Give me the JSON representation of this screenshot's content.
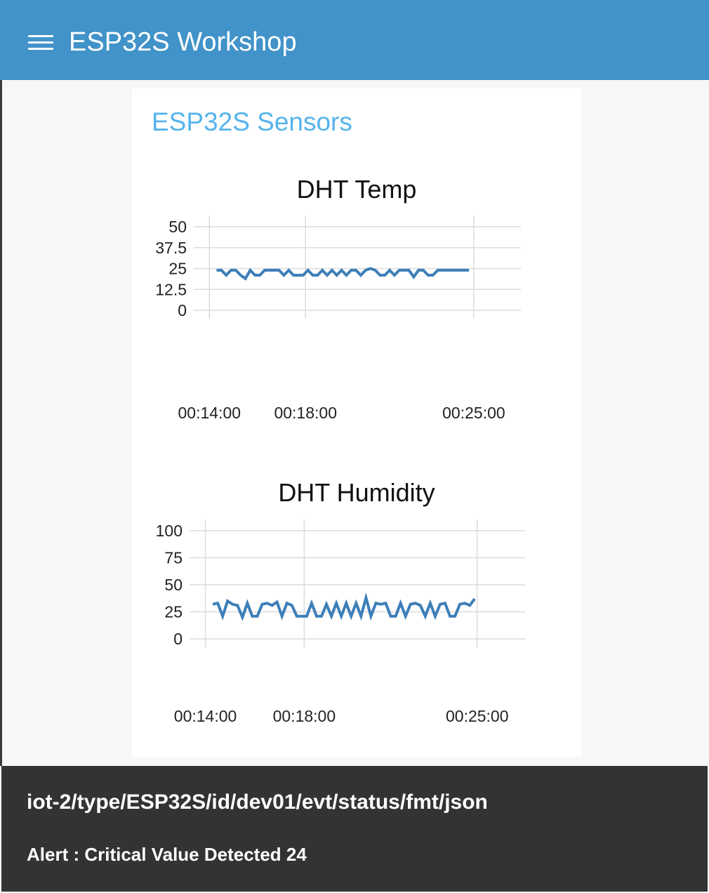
{
  "header": {
    "title": "ESP32S Workshop",
    "menu_icon": "hamburger-icon"
  },
  "group": {
    "title": "ESP32S Sensors"
  },
  "colors": {
    "header_bg": "#4193c9",
    "group_title": "#56b3ec",
    "line": "#3d7fb8",
    "toast_bg": "#333333"
  },
  "chart_data": [
    {
      "type": "line",
      "title": "DHT Temp",
      "ylim": [
        0,
        50
      ],
      "yticks": [
        "50",
        "37.5",
        "25",
        "12.5",
        "0"
      ],
      "ytick_values": [
        50,
        37.5,
        25,
        12.5,
        0
      ],
      "xticks": [
        "00:14:00",
        "00:18:00",
        "00:25:00"
      ],
      "xtick_minutes": [
        0,
        4,
        11
      ],
      "xlim_minutes": [
        -0.3,
        12.2
      ],
      "grid": true,
      "series": [
        {
          "x": [
            0.3,
            0.5,
            0.7,
            0.9,
            1.1,
            1.3,
            1.5,
            1.7,
            1.9,
            2.1,
            2.3,
            2.5,
            2.7,
            2.9,
            3.1,
            3.3,
            3.5,
            3.7,
            3.9,
            4.1,
            4.3,
            4.5,
            4.7,
            4.9,
            5.1,
            5.3,
            5.5,
            5.7,
            5.9,
            6.1,
            6.3,
            6.5,
            6.7,
            6.9,
            7.1,
            7.3,
            7.5,
            7.7,
            7.9,
            8.1,
            8.3,
            8.5,
            8.7,
            8.9,
            9.1,
            9.3,
            9.5,
            9.7,
            9.9,
            10.1,
            10.3,
            10.5,
            10.8
          ],
          "values": [
            24,
            24,
            21,
            24,
            24,
            21,
            19,
            24,
            21,
            21,
            24,
            24,
            24,
            24,
            21,
            24,
            21,
            21,
            21,
            24,
            21,
            21,
            24,
            21,
            24,
            21,
            24,
            21,
            24,
            24,
            21,
            24,
            25,
            24,
            21,
            21,
            24,
            21,
            24,
            24,
            24,
            20,
            24,
            24,
            21,
            21,
            24,
            24,
            24,
            24,
            24,
            24,
            24
          ]
        }
      ]
    },
    {
      "type": "line",
      "title": "DHT Humidity",
      "ylim": [
        0,
        100
      ],
      "yticks": [
        "100",
        "75",
        "50",
        "25",
        "0"
      ],
      "ytick_values": [
        100,
        75,
        50,
        25,
        0
      ],
      "xticks": [
        "00:14:00",
        "00:18:00",
        "00:25:00"
      ],
      "xtick_minutes": [
        0,
        4,
        11
      ],
      "xlim_minutes": [
        -0.3,
        12.2
      ],
      "grid": true,
      "series": [
        {
          "x": [
            0.3,
            0.5,
            0.7,
            0.9,
            1.1,
            1.3,
            1.5,
            1.7,
            1.9,
            2.1,
            2.3,
            2.5,
            2.7,
            2.9,
            3.1,
            3.3,
            3.5,
            3.7,
            3.9,
            4.1,
            4.3,
            4.5,
            4.7,
            4.9,
            5.1,
            5.3,
            5.5,
            5.7,
            5.9,
            6.1,
            6.3,
            6.5,
            6.7,
            6.9,
            7.1,
            7.3,
            7.5,
            7.7,
            7.9,
            8.1,
            8.3,
            8.5,
            8.7,
            8.9,
            9.1,
            9.3,
            9.5,
            9.7,
            9.9,
            10.1,
            10.3,
            10.5,
            10.7,
            10.9
          ],
          "values": [
            32,
            33,
            21,
            35,
            32,
            31,
            20,
            33,
            21,
            21,
            32,
            33,
            31,
            34,
            21,
            33,
            31,
            21,
            21,
            21,
            33,
            21,
            21,
            32,
            21,
            33,
            21,
            33,
            21,
            33,
            21,
            38,
            21,
            33,
            32,
            33,
            21,
            21,
            33,
            21,
            32,
            33,
            31,
            21,
            33,
            21,
            32,
            33,
            21,
            21,
            32,
            33,
            31,
            37
          ]
        }
      ]
    }
  ],
  "toast": {
    "topic": "iot-2/type/ESP32S/id/dev01/evt/status/fmt/json",
    "message": "Alert : Critical Value Detected 24"
  }
}
